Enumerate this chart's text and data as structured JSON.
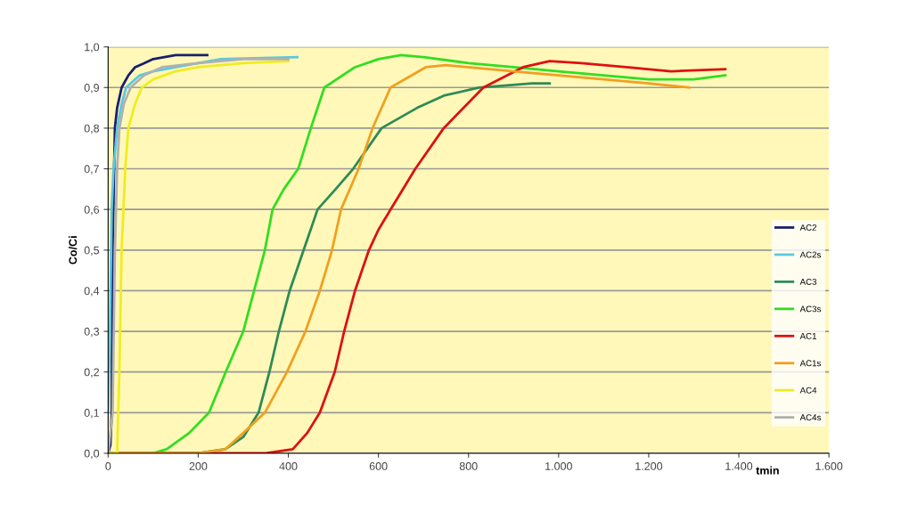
{
  "chart_data": {
    "type": "line",
    "ylabel": "Co/Ci",
    "xlabel": "tmin",
    "xlim": [
      0,
      1600
    ],
    "ylim": [
      0,
      1.0
    ],
    "xticks": [
      0,
      200,
      400,
      600,
      800,
      {
        "value": 1000,
        "label": "1.000"
      },
      {
        "value": 1200,
        "label": "1.200"
      },
      {
        "value": 1400,
        "label": "1.400"
      },
      {
        "value": 1600,
        "label": "1.600"
      }
    ],
    "yticks": [
      {
        "value": 0,
        "label": "0,0"
      },
      {
        "value": 0.1,
        "label": "0,1"
      },
      {
        "value": 0.2,
        "label": "0,2"
      },
      {
        "value": 0.3,
        "label": "0,3"
      },
      {
        "value": 0.4,
        "label": "0,4"
      },
      {
        "value": 0.5,
        "label": "0,5"
      },
      {
        "value": 0.6,
        "label": "0,6"
      },
      {
        "value": 0.7,
        "label": "0,7"
      },
      {
        "value": 0.8,
        "label": "0,8"
      },
      {
        "value": 0.9,
        "label": "0,9"
      },
      {
        "value": 1.0,
        "label": "1,0"
      }
    ],
    "grid": "y",
    "legend": "right",
    "marker": "none",
    "line_style": "solid",
    "series": [
      {
        "name": "AC2",
        "color": "#1a1f6e",
        "x": [
          0,
          5,
          8,
          10,
          15,
          20,
          30,
          45,
          60,
          80,
          100,
          150,
          220
        ],
        "values": [
          0,
          0.02,
          0.1,
          0.5,
          0.8,
          0.85,
          0.9,
          0.93,
          0.95,
          0.96,
          0.97,
          0.98,
          0.98
        ]
      },
      {
        "name": "AC2s",
        "color": "#5bc8e0",
        "x": [
          0,
          4,
          8,
          12,
          20,
          30,
          40,
          70,
          100,
          150,
          250,
          420
        ],
        "values": [
          0.1,
          0.3,
          0.6,
          0.7,
          0.8,
          0.86,
          0.9,
          0.93,
          0.94,
          0.95,
          0.97,
          0.975
        ]
      },
      {
        "name": "AC3",
        "color": "#2e8b57",
        "x": [
          0,
          200,
          260,
          300,
          334,
          358,
          379,
          403,
          434,
          465,
          505,
          544,
          607,
          686,
          745,
          823,
          941,
          980
        ],
        "values": [
          0,
          0,
          0.01,
          0.04,
          0.1,
          0.2,
          0.3,
          0.4,
          0.5,
          0.6,
          0.65,
          0.7,
          0.8,
          0.85,
          0.88,
          0.9,
          0.91,
          0.91
        ]
      },
      {
        "name": "AC3s",
        "color": "#33dd22",
        "x": [
          0,
          100,
          130,
          180,
          224,
          261,
          300,
          324,
          348,
          365,
          390,
          422,
          450,
          480,
          548,
          600,
          650,
          700,
          800,
          900,
          1000,
          1100,
          1200,
          1300,
          1370
        ],
        "values": [
          0,
          0,
          0.01,
          0.05,
          0.1,
          0.2,
          0.3,
          0.4,
          0.5,
          0.6,
          0.65,
          0.7,
          0.8,
          0.9,
          0.95,
          0.97,
          0.98,
          0.975,
          0.96,
          0.95,
          0.94,
          0.93,
          0.92,
          0.92,
          0.93
        ]
      },
      {
        "name": "AC1",
        "color": "#dd1111",
        "x": [
          0,
          350,
          410,
          442,
          470,
          503,
          524,
          548,
          579,
          600,
          627,
          682,
          745,
          833,
          921,
          980,
          1050,
          1150,
          1250,
          1370
        ],
        "values": [
          0,
          0,
          0.01,
          0.05,
          0.1,
          0.2,
          0.3,
          0.4,
          0.5,
          0.55,
          0.6,
          0.7,
          0.8,
          0.9,
          0.95,
          0.965,
          0.96,
          0.95,
          0.94,
          0.945
        ]
      },
      {
        "name": "AC1s",
        "color": "#f0a020",
        "x": [
          0,
          200,
          260,
          300,
          348,
          397,
          438,
          470,
          497,
          517,
          556,
          587,
          627,
          705,
          750,
          900,
          1000,
          1100,
          1200,
          1290
        ],
        "values": [
          0,
          0,
          0.01,
          0.05,
          0.1,
          0.2,
          0.3,
          0.4,
          0.5,
          0.6,
          0.7,
          0.8,
          0.9,
          0.95,
          0.955,
          0.94,
          0.93,
          0.92,
          0.91,
          0.9
        ]
      },
      {
        "name": "AC4",
        "color": "#f0ec20",
        "x": [
          0,
          20,
          25,
          30,
          38,
          45,
          60,
          75,
          100,
          150,
          200,
          300,
          400
        ],
        "values": [
          0,
          0,
          0.2,
          0.5,
          0.7,
          0.8,
          0.86,
          0.9,
          0.92,
          0.94,
          0.95,
          0.96,
          0.965
        ]
      },
      {
        "name": "AC4s",
        "color": "#b0b0b0",
        "x": [
          0,
          10,
          15,
          20,
          25,
          35,
          50,
          80,
          120,
          200,
          300,
          400
        ],
        "values": [
          0,
          0.1,
          0.5,
          0.7,
          0.8,
          0.86,
          0.9,
          0.93,
          0.95,
          0.96,
          0.97,
          0.97
        ]
      }
    ]
  }
}
